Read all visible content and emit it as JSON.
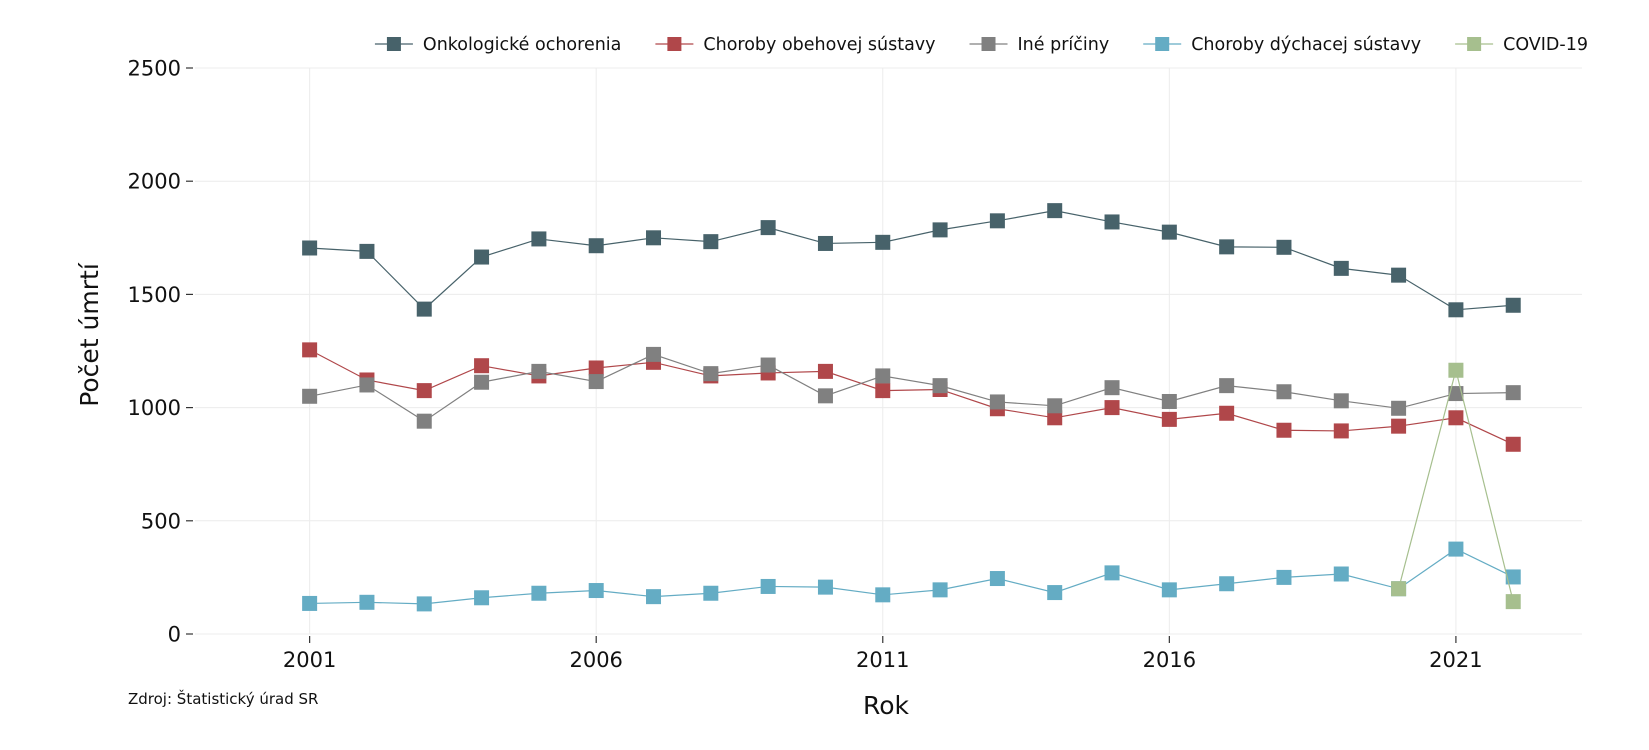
{
  "chart_data": {
    "type": "line",
    "title": "",
    "xlabel": "Rok",
    "ylabel": "Počet úmrtí",
    "source": "Zdroj: Štatistický úrad SR",
    "x": [
      2001,
      2002,
      2003,
      2004,
      2005,
      2006,
      2007,
      2008,
      2009,
      2010,
      2011,
      2012,
      2013,
      2014,
      2015,
      2016,
      2017,
      2018,
      2019,
      2020,
      2021,
      2022
    ],
    "xlim": [
      1999.0,
      2023.2
    ],
    "ylim": [
      0,
      2500
    ],
    "x_ticks": [
      2001,
      2006,
      2011,
      2016,
      2021
    ],
    "y_ticks": [
      0,
      500,
      1000,
      1500,
      2000,
      2500
    ],
    "x_tick_labels": [
      "2001",
      "2006",
      "2011",
      "2016",
      "2021"
    ],
    "y_tick_labels": [
      "0",
      "500",
      "1000",
      "1500",
      "2000",
      "2500"
    ],
    "grid": true,
    "legend_position": "top-right",
    "marker": "square",
    "series": [
      {
        "name": "Onkologické ochorenia",
        "color": "#47626a",
        "values": [
          1705,
          1690,
          1435,
          1665,
          1745,
          1715,
          1750,
          1733,
          1795,
          1725,
          1730,
          1785,
          1825,
          1870,
          1820,
          1775,
          1710,
          1708,
          1615,
          1585,
          1432,
          1452
        ]
      },
      {
        "name": "Choroby obehovej sústavy",
        "color": "#b0474a",
        "values": [
          1255,
          1122,
          1075,
          1185,
          1140,
          1175,
          1200,
          1140,
          1153,
          1160,
          1075,
          1080,
          995,
          955,
          1000,
          948,
          975,
          900,
          897,
          918,
          955,
          838
        ]
      },
      {
        "name": "Iné príčiny",
        "color": "#808080",
        "values": [
          1050,
          1100,
          940,
          1112,
          1160,
          1115,
          1235,
          1150,
          1188,
          1052,
          1140,
          1097,
          1025,
          1008,
          1088,
          1027,
          1097,
          1070,
          1030,
          997,
          1062,
          1066
        ]
      },
      {
        "name": "Choroby dýchacej sústavy",
        "color": "#64acc4",
        "values": [
          135,
          140,
          133,
          160,
          180,
          192,
          165,
          180,
          210,
          207,
          173,
          195,
          245,
          183,
          270,
          195,
          222,
          250,
          265,
          200,
          375,
          252
        ]
      },
      {
        "name": "COVID-19",
        "color": "#a6bf8e",
        "x": [
          2020,
          2021,
          2022
        ],
        "values": [
          200,
          1165,
          143
        ]
      }
    ]
  }
}
